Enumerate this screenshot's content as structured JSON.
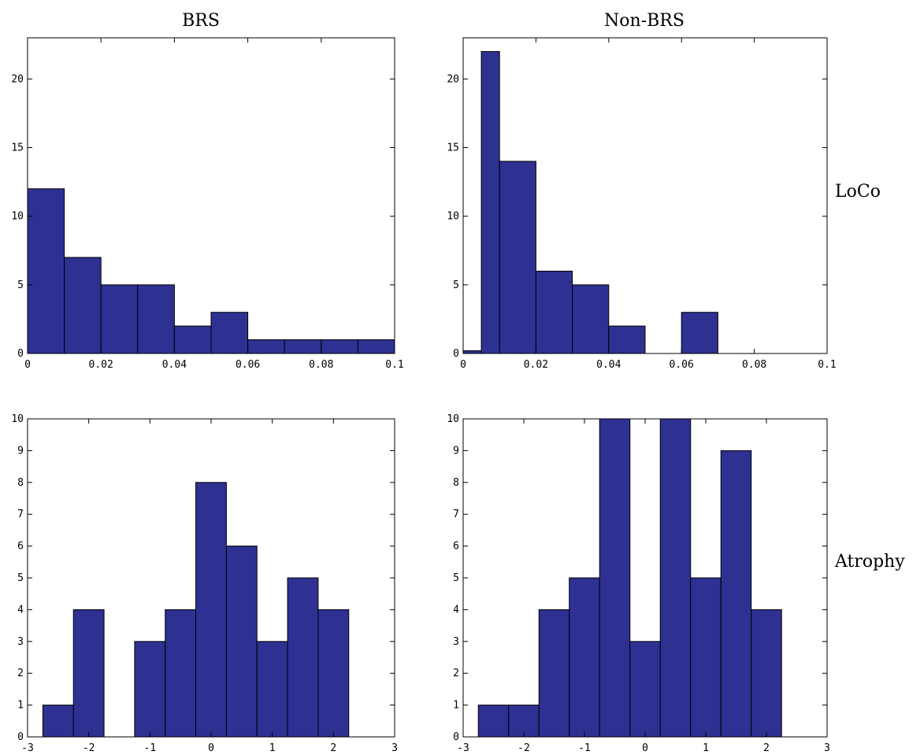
{
  "figure": {
    "column_titles": [
      "BRS",
      "Non-BRS"
    ],
    "row_labels": [
      "LoCo",
      "Atrophy"
    ],
    "bar_color": "#2e3192"
  },
  "chart_data": [
    {
      "type": "bar",
      "title": "BRS",
      "row": "LoCo",
      "bin_edges": [
        0,
        0.01,
        0.02,
        0.03,
        0.04,
        0.05,
        0.06,
        0.07,
        0.08,
        0.09,
        0.1
      ],
      "values": [
        12,
        7,
        5,
        5,
        2,
        3,
        1,
        1,
        1,
        1
      ],
      "xlim": [
        0,
        0.1
      ],
      "ylim": [
        0,
        23
      ],
      "xticks": [
        0,
        0.02,
        0.04,
        0.06,
        0.08,
        0.1
      ],
      "xtick_labels": [
        "0",
        "0.02",
        "0.04",
        "0.06",
        "0.08",
        "0.1"
      ],
      "yticks": [
        0,
        5,
        10,
        15,
        20
      ],
      "ytick_labels": [
        "0",
        "5",
        "10",
        "15",
        "20"
      ]
    },
    {
      "type": "bar",
      "title": "Non-BRS",
      "row": "LoCo",
      "bin_edges": [
        0,
        0.005,
        0.01,
        0.02,
        0.03,
        0.04,
        0.05,
        0.06,
        0.07,
        0.08,
        0.09,
        0.1
      ],
      "values": [
        0.2,
        22,
        14,
        6,
        5,
        2,
        0,
        3,
        0,
        0,
        0
      ],
      "xlim": [
        0,
        0.1
      ],
      "ylim": [
        0,
        23
      ],
      "xticks": [
        0,
        0.02,
        0.04,
        0.06,
        0.08,
        0.1
      ],
      "xtick_labels": [
        "0",
        "0.02",
        "0.04",
        "0.06",
        "0.08",
        "0.1"
      ],
      "yticks": [
        0,
        5,
        10,
        15,
        20
      ],
      "ytick_labels": [
        "0",
        "5",
        "10",
        "15",
        "20"
      ]
    },
    {
      "type": "bar",
      "title": "BRS",
      "row": "Atrophy",
      "bin_edges": [
        -2.75,
        -2.25,
        -1.75,
        -1.25,
        -0.75,
        -0.25,
        0.25,
        0.75,
        1.25,
        1.75,
        2.25
      ],
      "values": [
        1,
        4,
        0,
        3,
        4,
        8,
        6,
        3,
        5,
        4
      ],
      "xlim": [
        -3,
        3
      ],
      "ylim": [
        0,
        10
      ],
      "xticks": [
        -3,
        -2,
        -1,
        0,
        1,
        2,
        3
      ],
      "xtick_labels": [
        "-3",
        "-2",
        "-1",
        "0",
        "1",
        "2",
        "3"
      ],
      "yticks": [
        0,
        1,
        2,
        3,
        4,
        5,
        6,
        7,
        8,
        9,
        10
      ],
      "ytick_labels": [
        "0",
        "1",
        "2",
        "3",
        "4",
        "5",
        "6",
        "7",
        "8",
        "9",
        "10"
      ]
    },
    {
      "type": "bar",
      "title": "Non-BRS",
      "row": "Atrophy",
      "bin_edges": [
        -2.75,
        -2.25,
        -1.75,
        -1.25,
        -0.75,
        -0.25,
        0.25,
        0.75,
        1.25,
        1.75,
        2.25
      ],
      "values": [
        1,
        1,
        4,
        5,
        10,
        3,
        10,
        5,
        9,
        4
      ],
      "xlim": [
        -3,
        3
      ],
      "ylim": [
        0,
        10
      ],
      "xticks": [
        -3,
        -2,
        -1,
        0,
        1,
        2,
        3
      ],
      "xtick_labels": [
        "-3",
        "-2",
        "-1",
        "0",
        "1",
        "2",
        "3"
      ],
      "yticks": [
        0,
        1,
        2,
        3,
        4,
        5,
        6,
        7,
        8,
        9,
        10
      ],
      "ytick_labels": [
        "0",
        "1",
        "2",
        "3",
        "4",
        "5",
        "6",
        "7",
        "8",
        "9",
        "10"
      ]
    }
  ]
}
